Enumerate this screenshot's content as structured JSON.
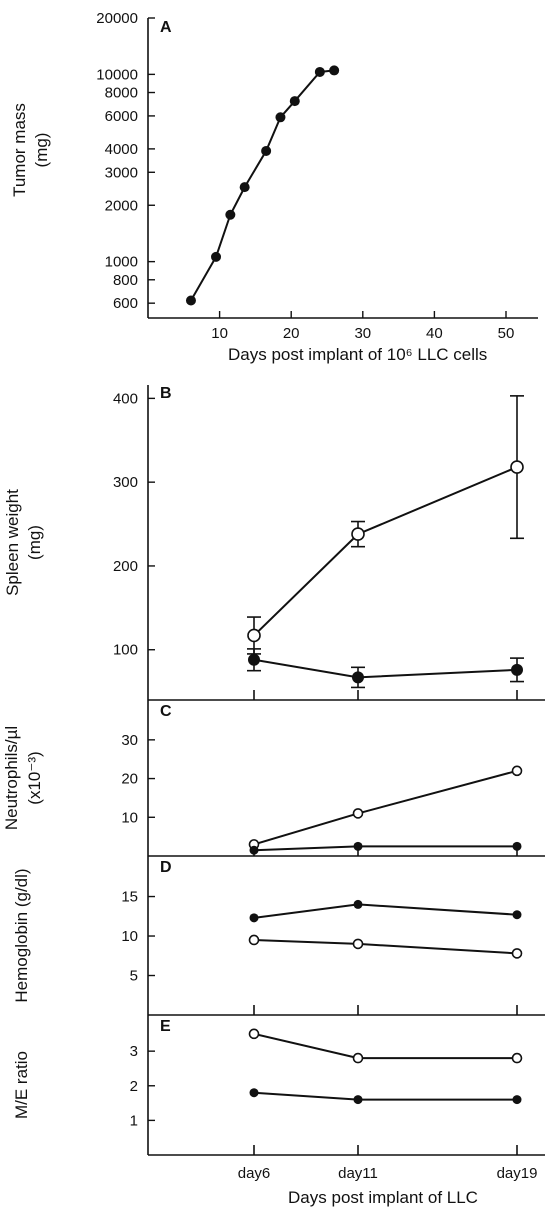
{
  "chart_data": [
    {
      "panel": "A",
      "type": "line",
      "ylabel": "Tumor mass",
      "yunit": "(mg)",
      "xlabel": "Days post implant of 10⁶ LLC cells",
      "yscale": "log",
      "ylim": [
        500,
        20000
      ],
      "xlim": [
        0,
        55
      ],
      "yticks": [
        {
          "v": 600,
          "label": "600"
        },
        {
          "v": 800,
          "label": "800"
        },
        {
          "v": 1000,
          "label": "1000"
        },
        {
          "v": 2000,
          "label": "2000"
        },
        {
          "v": 3000,
          "label": "3000"
        },
        {
          "v": 4000,
          "label": "4000"
        },
        {
          "v": 6000,
          "label": "6000"
        },
        {
          "v": 8000,
          "label": "8000"
        },
        {
          "v": 10000,
          "label": "10000"
        },
        {
          "v": 20000,
          "label": "20000"
        }
      ],
      "xticks": [
        10,
        20,
        30,
        40,
        50
      ],
      "series": [
        {
          "marker": "filled",
          "x": [
            6,
            9.5,
            11.5,
            13.5,
            16.5,
            18.5,
            20.5,
            24,
            26
          ],
          "y": [
            620,
            1060,
            1780,
            2500,
            3900,
            5900,
            7200,
            10300,
            10500
          ]
        }
      ]
    },
    {
      "panel": "B",
      "type": "line",
      "ylabel": "Spleen weight",
      "yunit": "(mg)",
      "ylim": [
        40,
        410
      ],
      "yticks": [
        100,
        200,
        300,
        400
      ],
      "categories": [
        "day6",
        "day11",
        "day19"
      ],
      "series": [
        {
          "marker": "open",
          "values": [
            117,
            238,
            318
          ],
          "errors": [
            22,
            15,
            85
          ]
        },
        {
          "marker": "filled",
          "values": [
            88,
            67,
            76
          ],
          "errors": [
            13,
            12,
            14
          ]
        }
      ]
    },
    {
      "panel": "C",
      "type": "line",
      "ylabel": "Neutrophils/µl",
      "yunit": "(x10⁻³)",
      "ylim": [
        0,
        39
      ],
      "yticks": [
        10,
        20,
        30
      ],
      "categories": [
        "day6",
        "day11",
        "day19"
      ],
      "series": [
        {
          "marker": "open",
          "values": [
            3,
            11,
            22
          ]
        },
        {
          "marker": "filled",
          "values": [
            1.5,
            2.5,
            2.5
          ]
        }
      ]
    },
    {
      "panel": "D",
      "type": "line",
      "ylabel": "Hemoglobin (g/dl)",
      "ylim": [
        0,
        19.5
      ],
      "yticks": [
        5,
        10,
        15
      ],
      "categories": [
        "day6",
        "day11",
        "day19"
      ],
      "series": [
        {
          "marker": "filled",
          "values": [
            12.3,
            14,
            12.7
          ]
        },
        {
          "marker": "open",
          "values": [
            9.5,
            9,
            7.8
          ]
        }
      ]
    },
    {
      "panel": "E",
      "type": "line",
      "ylabel": "M/E ratio",
      "ylim": [
        0,
        3.9
      ],
      "yticks": [
        1,
        2,
        3
      ],
      "xlabel": "Days post implant of LLC",
      "categories": [
        "day6",
        "day11",
        "day19"
      ],
      "series": [
        {
          "marker": "open",
          "values": [
            3.5,
            2.8,
            2.8
          ]
        },
        {
          "marker": "filled",
          "values": [
            1.8,
            1.6,
            1.6
          ]
        }
      ]
    }
  ]
}
